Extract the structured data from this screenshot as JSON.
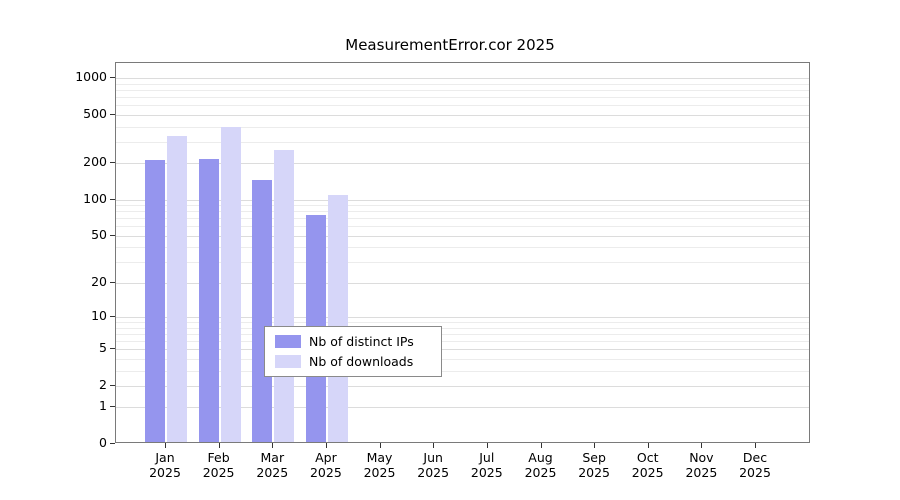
{
  "title": "MeasurementError.cor 2025",
  "chart_data": {
    "type": "bar",
    "title": "MeasurementError.cor 2025",
    "categories": [
      "Jan",
      "Feb",
      "Mar",
      "Apr",
      "May",
      "Jun",
      "Jul",
      "Aug",
      "Sep",
      "Oct",
      "Nov",
      "Dec"
    ],
    "category_year": "2025",
    "series": [
      {
        "name": "Nb of distinct IPs",
        "color": "#9595ee",
        "values": [
          205,
          210,
          140,
          72,
          0,
          0,
          0,
          0,
          0,
          0,
          0,
          0
        ]
      },
      {
        "name": "Nb of downloads",
        "color": "#d6d6f9",
        "values": [
          320,
          380,
          245,
          105,
          0,
          0,
          0,
          0,
          0,
          0,
          0,
          0
        ]
      }
    ],
    "yscale": "log1p",
    "yticks": [
      0,
      1,
      2,
      5,
      10,
      20,
      50,
      100,
      200,
      500,
      1000
    ],
    "minor_gridlines": [
      3,
      4,
      6,
      7,
      8,
      9,
      30,
      40,
      60,
      70,
      80,
      90,
      300,
      400,
      600,
      700,
      800,
      900
    ],
    "ylim": [
      0,
      1000
    ],
    "grid": true,
    "legend_position": "inside-bottom-center",
    "xlabel": "",
    "ylabel": ""
  }
}
